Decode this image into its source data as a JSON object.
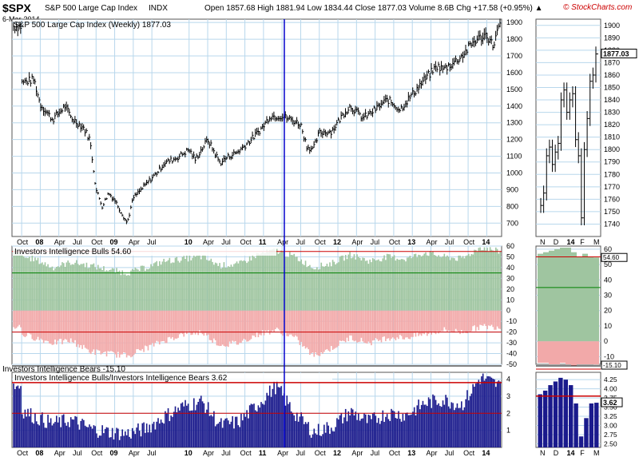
{
  "header": {
    "symbol": "$SPX",
    "name": "S&P 500 Large Cap Index",
    "exchange": "INDX",
    "date": "6-Mar-2014",
    "quote": "Open 1857.68  High 1881.94  Low 1834.44  Close 1877.03  Volume 8.6B  Chg +17.58 (+0.95%) ▲",
    "brand": "© StockCharts.com",
    "brand_color": "#cc0000"
  },
  "colors": {
    "price": "#000000",
    "grid": "#b8d7ec",
    "bulls_fill_high": "#9fc5a0",
    "bulls_fill_low": "#f2a9a9",
    "bears_bar": "#1a1a8c",
    "ref_green": "#008000",
    "ref_red": "#cc0000",
    "cursor": "#0000cc",
    "panel_bg": "#ffffff"
  },
  "chart_data": [
    {
      "id": "price",
      "type": "line",
      "title": "S&P 500 Large Cap Index (Weekly) 1877.03",
      "x_ticks": [
        "Oct",
        "08",
        "Apr",
        "Jul",
        "Oct",
        "09",
        "Apr",
        "Jul",
        "10",
        "Apr",
        "Jul",
        "Oct",
        "11",
        "Apr",
        "Jul",
        "Oct",
        "12",
        "Apr",
        "Jul",
        "Oct",
        "13",
        "Apr",
        "Jul",
        "Oct",
        "14",
        "Apr"
      ],
      "y_ticks": [
        "700",
        "800",
        "900",
        "1000",
        "1100",
        "1200",
        "1300",
        "1400",
        "1500",
        "1600",
        "1700",
        "1800",
        "1900"
      ],
      "ylim": [
        620,
        1920
      ],
      "x": [
        "2007-10",
        "2007-12",
        "2008-01",
        "2008-03",
        "2008-05",
        "2008-06",
        "2008-08",
        "2008-09",
        "2008-10",
        "2008-11",
        "2008-12",
        "2009-01",
        "2009-03",
        "2009-04",
        "2009-06",
        "2009-08",
        "2009-09",
        "2009-11",
        "2010-01",
        "2010-02",
        "2010-04",
        "2010-06",
        "2010-07",
        "2010-09",
        "2010-11",
        "2011-01",
        "2011-02",
        "2011-04",
        "2011-06",
        "2011-07",
        "2011-08",
        "2011-09",
        "2011-10",
        "2011-12",
        "2012-02",
        "2012-03",
        "2012-05",
        "2012-06",
        "2012-08",
        "2012-09",
        "2012-11",
        "2013-01",
        "2013-03",
        "2013-05",
        "2013-06",
        "2013-08",
        "2013-09",
        "2013-11",
        "2014-01",
        "2014-02",
        "2014-03"
      ],
      "values": [
        1540,
        1560,
        1410,
        1320,
        1400,
        1330,
        1270,
        1200,
        900,
        800,
        880,
        840,
        700,
        850,
        930,
        1010,
        1060,
        1090,
        1140,
        1080,
        1200,
        1060,
        1090,
        1130,
        1200,
        1280,
        1340,
        1340,
        1310,
        1290,
        1160,
        1140,
        1240,
        1250,
        1360,
        1400,
        1330,
        1350,
        1410,
        1440,
        1380,
        1470,
        1560,
        1640,
        1620,
        1670,
        1700,
        1790,
        1830,
        1760,
        1877
      ]
    },
    {
      "id": "bulls",
      "type": "area",
      "title": "Investors Intelligence Bulls 54.60",
      "subtitle": "Investors Intelligence Bears -15.10",
      "last_value_label": "54.60",
      "last_value_label_2": "-15.10",
      "y_ticks": [
        "-50",
        "-40",
        "-30",
        "-20",
        "-10",
        "0",
        "10",
        "20",
        "30",
        "40",
        "50",
        "60"
      ],
      "ylim": [
        -50,
        60
      ],
      "ref_lines": {
        "green": 35,
        "red_high": 55,
        "red_low": -20
      },
      "x": [
        "2007-10",
        "2007-12",
        "2008-03",
        "2008-06",
        "2008-09",
        "2008-12",
        "2009-03",
        "2009-06",
        "2009-09",
        "2009-12",
        "2010-03",
        "2010-06",
        "2010-09",
        "2010-12",
        "2011-03",
        "2011-06",
        "2011-09",
        "2011-12",
        "2012-03",
        "2012-06",
        "2012-09",
        "2012-12",
        "2013-03",
        "2013-06",
        "2013-09",
        "2013-12",
        "2014-03"
      ],
      "bulls": [
        50,
        48,
        40,
        45,
        42,
        38,
        35,
        40,
        46,
        48,
        50,
        42,
        43,
        52,
        56,
        50,
        40,
        44,
        52,
        46,
        50,
        48,
        54,
        50,
        48,
        59,
        55
      ],
      "bears": [
        -22,
        -25,
        -30,
        -28,
        -38,
        -40,
        -42,
        -35,
        -28,
        -22,
        -20,
        -32,
        -30,
        -22,
        -18,
        -25,
        -42,
        -35,
        -25,
        -30,
        -25,
        -25,
        -22,
        -18,
        -20,
        -15,
        -15
      ]
    },
    {
      "id": "ratio",
      "type": "bar",
      "title": "Investors Intelligence Bulls/Investors Intelligence Bears 3.62",
      "last_value_label": "3.62",
      "y_ticks": [
        "1",
        "2",
        "3",
        "4"
      ],
      "ylim": [
        0,
        4.4
      ],
      "ref_lines": {
        "red_high": 3.8,
        "red_low": 2.0
      },
      "x": [
        "2007-10",
        "2007-12",
        "2008-03",
        "2008-06",
        "2008-09",
        "2008-12",
        "2009-03",
        "2009-06",
        "2009-09",
        "2009-12",
        "2010-03",
        "2010-06",
        "2010-09",
        "2010-12",
        "2011-03",
        "2011-06",
        "2011-09",
        "2011-12",
        "2012-03",
        "2012-06",
        "2012-09",
        "2012-12",
        "2013-03",
        "2013-06",
        "2013-09",
        "2013-12",
        "2014-03"
      ],
      "values": [
        2.2,
        1.8,
        1.4,
        1.6,
        1.1,
        0.9,
        0.8,
        1.1,
        1.8,
        2.4,
        2.7,
        1.3,
        1.5,
        2.5,
        3.6,
        2.0,
        0.9,
        1.2,
        2.1,
        1.5,
        2.0,
        1.9,
        2.6,
        2.8,
        2.5,
        4.1,
        3.62
      ]
    },
    {
      "id": "zoom-price",
      "type": "line",
      "x_ticks": [
        "N",
        "D",
        "14",
        "F",
        "M"
      ],
      "y_ticks": [
        "1740",
        "1750",
        "1760",
        "1770",
        "1780",
        "1790",
        "1800",
        "1810",
        "1820",
        "1830",
        "1840",
        "1850",
        "1860",
        "1870",
        "1880",
        "1890",
        "1900"
      ],
      "ylim": [
        1730,
        1905
      ],
      "last_value_label": "1877.03",
      "values": [
        1755,
        1765,
        1795,
        1802,
        1788,
        1798,
        1805,
        1840,
        1848,
        1830,
        1840,
        1845,
        1808,
        1795,
        1745,
        1800,
        1825,
        1855,
        1860,
        1877
      ]
    },
    {
      "id": "zoom-bulls",
      "type": "area",
      "y_ticks": [
        "-10",
        "0",
        "10",
        "20",
        "30",
        "40",
        "50",
        "60"
      ],
      "ylim": [
        -15,
        62
      ],
      "last_value_label": "54.60",
      "last_value_label_2": "-15.10",
      "bulls": [
        57,
        58,
        59,
        60,
        61,
        61,
        58,
        55,
        57,
        55,
        54.6
      ],
      "bears": [
        -14,
        -14,
        -15,
        -15,
        -14,
        -15,
        -16,
        -15,
        -15,
        -15,
        -15.1
      ]
    },
    {
      "id": "zoom-ratio",
      "type": "bar",
      "y_ticks": [
        "2.50",
        "2.75",
        "3.00",
        "3.25",
        "3.50",
        "3.75",
        "4.00",
        "4.25"
      ],
      "ylim": [
        2.4,
        4.45
      ],
      "last_value_label": "3.62",
      "values": [
        3.85,
        3.95,
        4.1,
        4.2,
        4.3,
        4.25,
        4.1,
        3.6,
        2.7,
        3.2,
        3.6,
        3.62
      ]
    }
  ],
  "zoom_x_ticks": [
    "N",
    "D",
    "14",
    "F",
    "M"
  ]
}
